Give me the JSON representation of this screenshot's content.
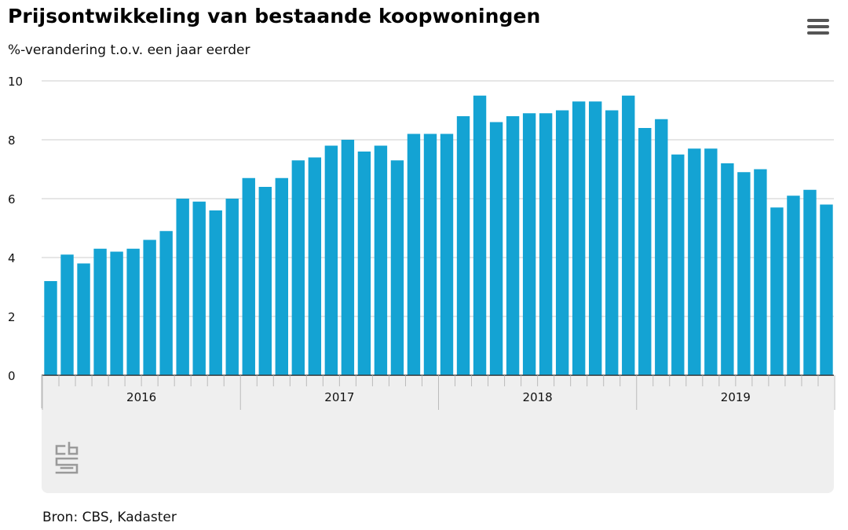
{
  "header": {
    "title": "Prijsontwikkeling van bestaande koopwoningen",
    "subtitle": "%-verandering t.o.v. een jaar eerder"
  },
  "menu_icon": "hamburger-menu-icon",
  "footer": {
    "source": "Bron: CBS, Kadaster"
  },
  "logo": {
    "text": "cbs",
    "icon": "cbs-logo-icon"
  },
  "colors": {
    "bar": "#14a3d3",
    "grid": "#cccccc",
    "navigator_bg": "#efefef"
  },
  "chart_data": {
    "type": "bar",
    "title": "Prijsontwikkeling van bestaande koopwoningen",
    "subtitle": "%-verandering t.o.v. een jaar eerder",
    "ylim": [
      0,
      10
    ],
    "yticks": [
      0,
      2,
      4,
      6,
      8,
      10
    ],
    "grid": true,
    "legend": "none",
    "year_labels": [
      "2016",
      "2017",
      "2018",
      "2019"
    ],
    "categories": [
      "2016-01",
      "2016-02",
      "2016-03",
      "2016-04",
      "2016-05",
      "2016-06",
      "2016-07",
      "2016-08",
      "2016-09",
      "2016-10",
      "2016-11",
      "2016-12",
      "2017-01",
      "2017-02",
      "2017-03",
      "2017-04",
      "2017-05",
      "2017-06",
      "2017-07",
      "2017-08",
      "2017-09",
      "2017-10",
      "2017-11",
      "2017-12",
      "2018-01",
      "2018-02",
      "2018-03",
      "2018-04",
      "2018-05",
      "2018-06",
      "2018-07",
      "2018-08",
      "2018-09",
      "2018-10",
      "2018-11",
      "2018-12",
      "2019-01",
      "2019-02",
      "2019-03",
      "2019-04",
      "2019-05",
      "2019-06",
      "2019-07",
      "2019-08",
      "2019-09",
      "2019-10",
      "2019-11",
      "2019-12"
    ],
    "values": [
      3.2,
      4.1,
      3.8,
      4.3,
      4.2,
      4.3,
      4.6,
      4.9,
      6.0,
      5.9,
      5.6,
      6.0,
      6.7,
      6.4,
      6.7,
      7.3,
      7.4,
      7.8,
      8.0,
      7.6,
      7.8,
      7.3,
      8.2,
      8.2,
      8.2,
      8.8,
      9.5,
      8.6,
      8.8,
      8.9,
      8.9,
      9.0,
      9.3,
      9.3,
      9.0,
      9.5,
      8.4,
      8.7,
      7.5,
      7.7,
      7.7,
      7.2,
      6.9,
      7.0,
      5.7,
      6.1,
      6.3,
      5.8
    ]
  }
}
